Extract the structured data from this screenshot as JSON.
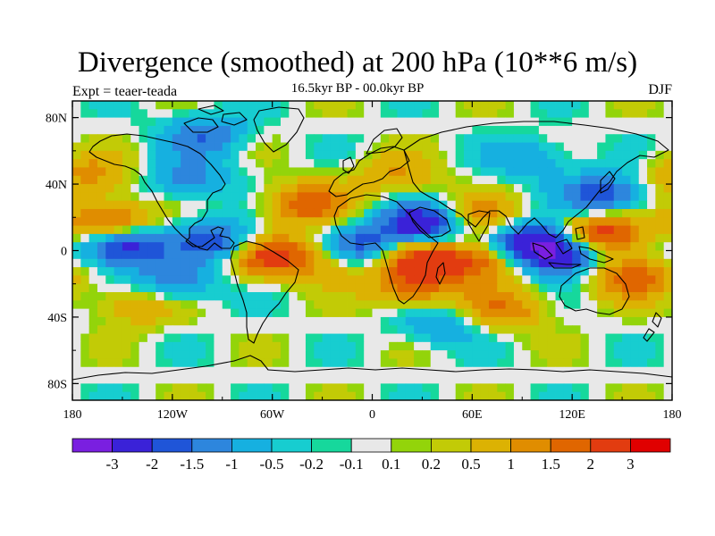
{
  "header": {
    "title": "Divergence (smoothed) at 200 hPa (10**6 m/s)",
    "experiment": "Expt = teaer-teada",
    "period": "16.5kyr BP - 00.0kyr BP",
    "season": "DJF"
  },
  "map": {
    "projection": "cylindrical-equidistant",
    "lon_range": [
      -180,
      180
    ],
    "lat_range": [
      -90,
      90
    ],
    "lat_ticks": [
      {
        "value": 80,
        "label": "80N"
      },
      {
        "value": 40,
        "label": "40N"
      },
      {
        "value": 0,
        "label": "0"
      },
      {
        "value": -40,
        "label": "40S"
      },
      {
        "value": -80,
        "label": "80S"
      }
    ],
    "lon_ticks": [
      {
        "value": -180,
        "label": "180"
      },
      {
        "value": -120,
        "label": "120W"
      },
      {
        "value": -60,
        "label": "60W"
      },
      {
        "value": 0,
        "label": "0"
      },
      {
        "value": 60,
        "label": "60E"
      },
      {
        "value": 120,
        "label": "120E"
      },
      {
        "value": 180,
        "label": "180"
      }
    ]
  },
  "colorbar": {
    "colors": [
      "#7a1fe0",
      "#3a22d8",
      "#1f55d8",
      "#2d86dd",
      "#16b0e0",
      "#17cdd0",
      "#16d89c",
      "#e8e8e8",
      "#93d40a",
      "#c2cb06",
      "#dcb203",
      "#e08d00",
      "#e06600",
      "#e23c10",
      "#e00000"
    ],
    "labels": [
      "-3",
      "-2",
      "-1.5",
      "-1",
      "-0.5",
      "-0.2",
      "-0.1",
      "0.1",
      "0.2",
      "0.5",
      "1",
      "1.5",
      "2",
      "3"
    ]
  },
  "field_anomalies": [
    {
      "name": "w-pacific-subtropics-positive",
      "lon": -158,
      "lat": 17,
      "value": 2.2
    },
    {
      "name": "tropical-e-pacific-negative",
      "lon": -150,
      "lat": 3,
      "value": -2.8
    },
    {
      "name": "central-america-negative",
      "lon": -90,
      "lat": 5,
      "value": -2.0
    },
    {
      "name": "s-america-positive",
      "lon": -62,
      "lat": -3,
      "value": 2.4
    },
    {
      "name": "n-atlantic-positive",
      "lon": -40,
      "lat": 28,
      "value": 1.8
    },
    {
      "name": "s-atlantic-positive",
      "lon": -20,
      "lat": -6,
      "value": 1.6
    },
    {
      "name": "tropical-atlantic-negative",
      "lon": -7,
      "lat": 0,
      "value": -2.5
    },
    {
      "name": "sahara-arabia-negative",
      "lon": 30,
      "lat": 15,
      "value": -2.9
    },
    {
      "name": "central-africa-positive",
      "lon": 27,
      "lat": -5,
      "value": 2.5
    },
    {
      "name": "s-africa-positive",
      "lon": 25,
      "lat": -23,
      "value": 1.6
    },
    {
      "name": "indian-ocean-positive",
      "lon": 65,
      "lat": -6,
      "value": 2.0
    },
    {
      "name": "arabian-sea-positive",
      "lon": 65,
      "lat": 20,
      "value": 1.4
    },
    {
      "name": "bay-of-bengal-negative",
      "lon": 95,
      "lat": 5,
      "value": -2.7
    },
    {
      "name": "maritime-continent-negative",
      "lon": 115,
      "lat": -3,
      "value": -2.6
    },
    {
      "name": "w-pacific-positive",
      "lon": 137,
      "lat": 10,
      "value": 2.8
    },
    {
      "name": "s-pacific-convergence-positive",
      "lon": 155,
      "lat": -15,
      "value": 2.0
    },
    {
      "name": "n-pacific-negative",
      "lon": 140,
      "lat": 33,
      "value": -2.0
    },
    {
      "name": "n-pacific-positive-belt",
      "lon": -170,
      "lat": 45,
      "value": 1.2
    },
    {
      "name": "north-america-negative",
      "lon": -110,
      "lat": 43,
      "value": -1.2
    },
    {
      "name": "n-canada-negative",
      "lon": -100,
      "lat": 70,
      "value": -1.4
    },
    {
      "name": "siberia-negative",
      "lon": 95,
      "lat": 55,
      "value": -1.0
    },
    {
      "name": "europe-positive",
      "lon": 15,
      "lat": 45,
      "value": 1.0
    },
    {
      "name": "s-indian-ocean-positive",
      "lon": 80,
      "lat": -35,
      "value": 1.4
    },
    {
      "name": "s-pacific-negative",
      "lon": -120,
      "lat": -20,
      "value": -1.5
    },
    {
      "name": "s-pacific-positive-band",
      "lon": -140,
      "lat": -32,
      "value": 1.2
    },
    {
      "name": "southern-ocean-negative",
      "lon": 40,
      "lat": -45,
      "value": -1.0
    }
  ]
}
